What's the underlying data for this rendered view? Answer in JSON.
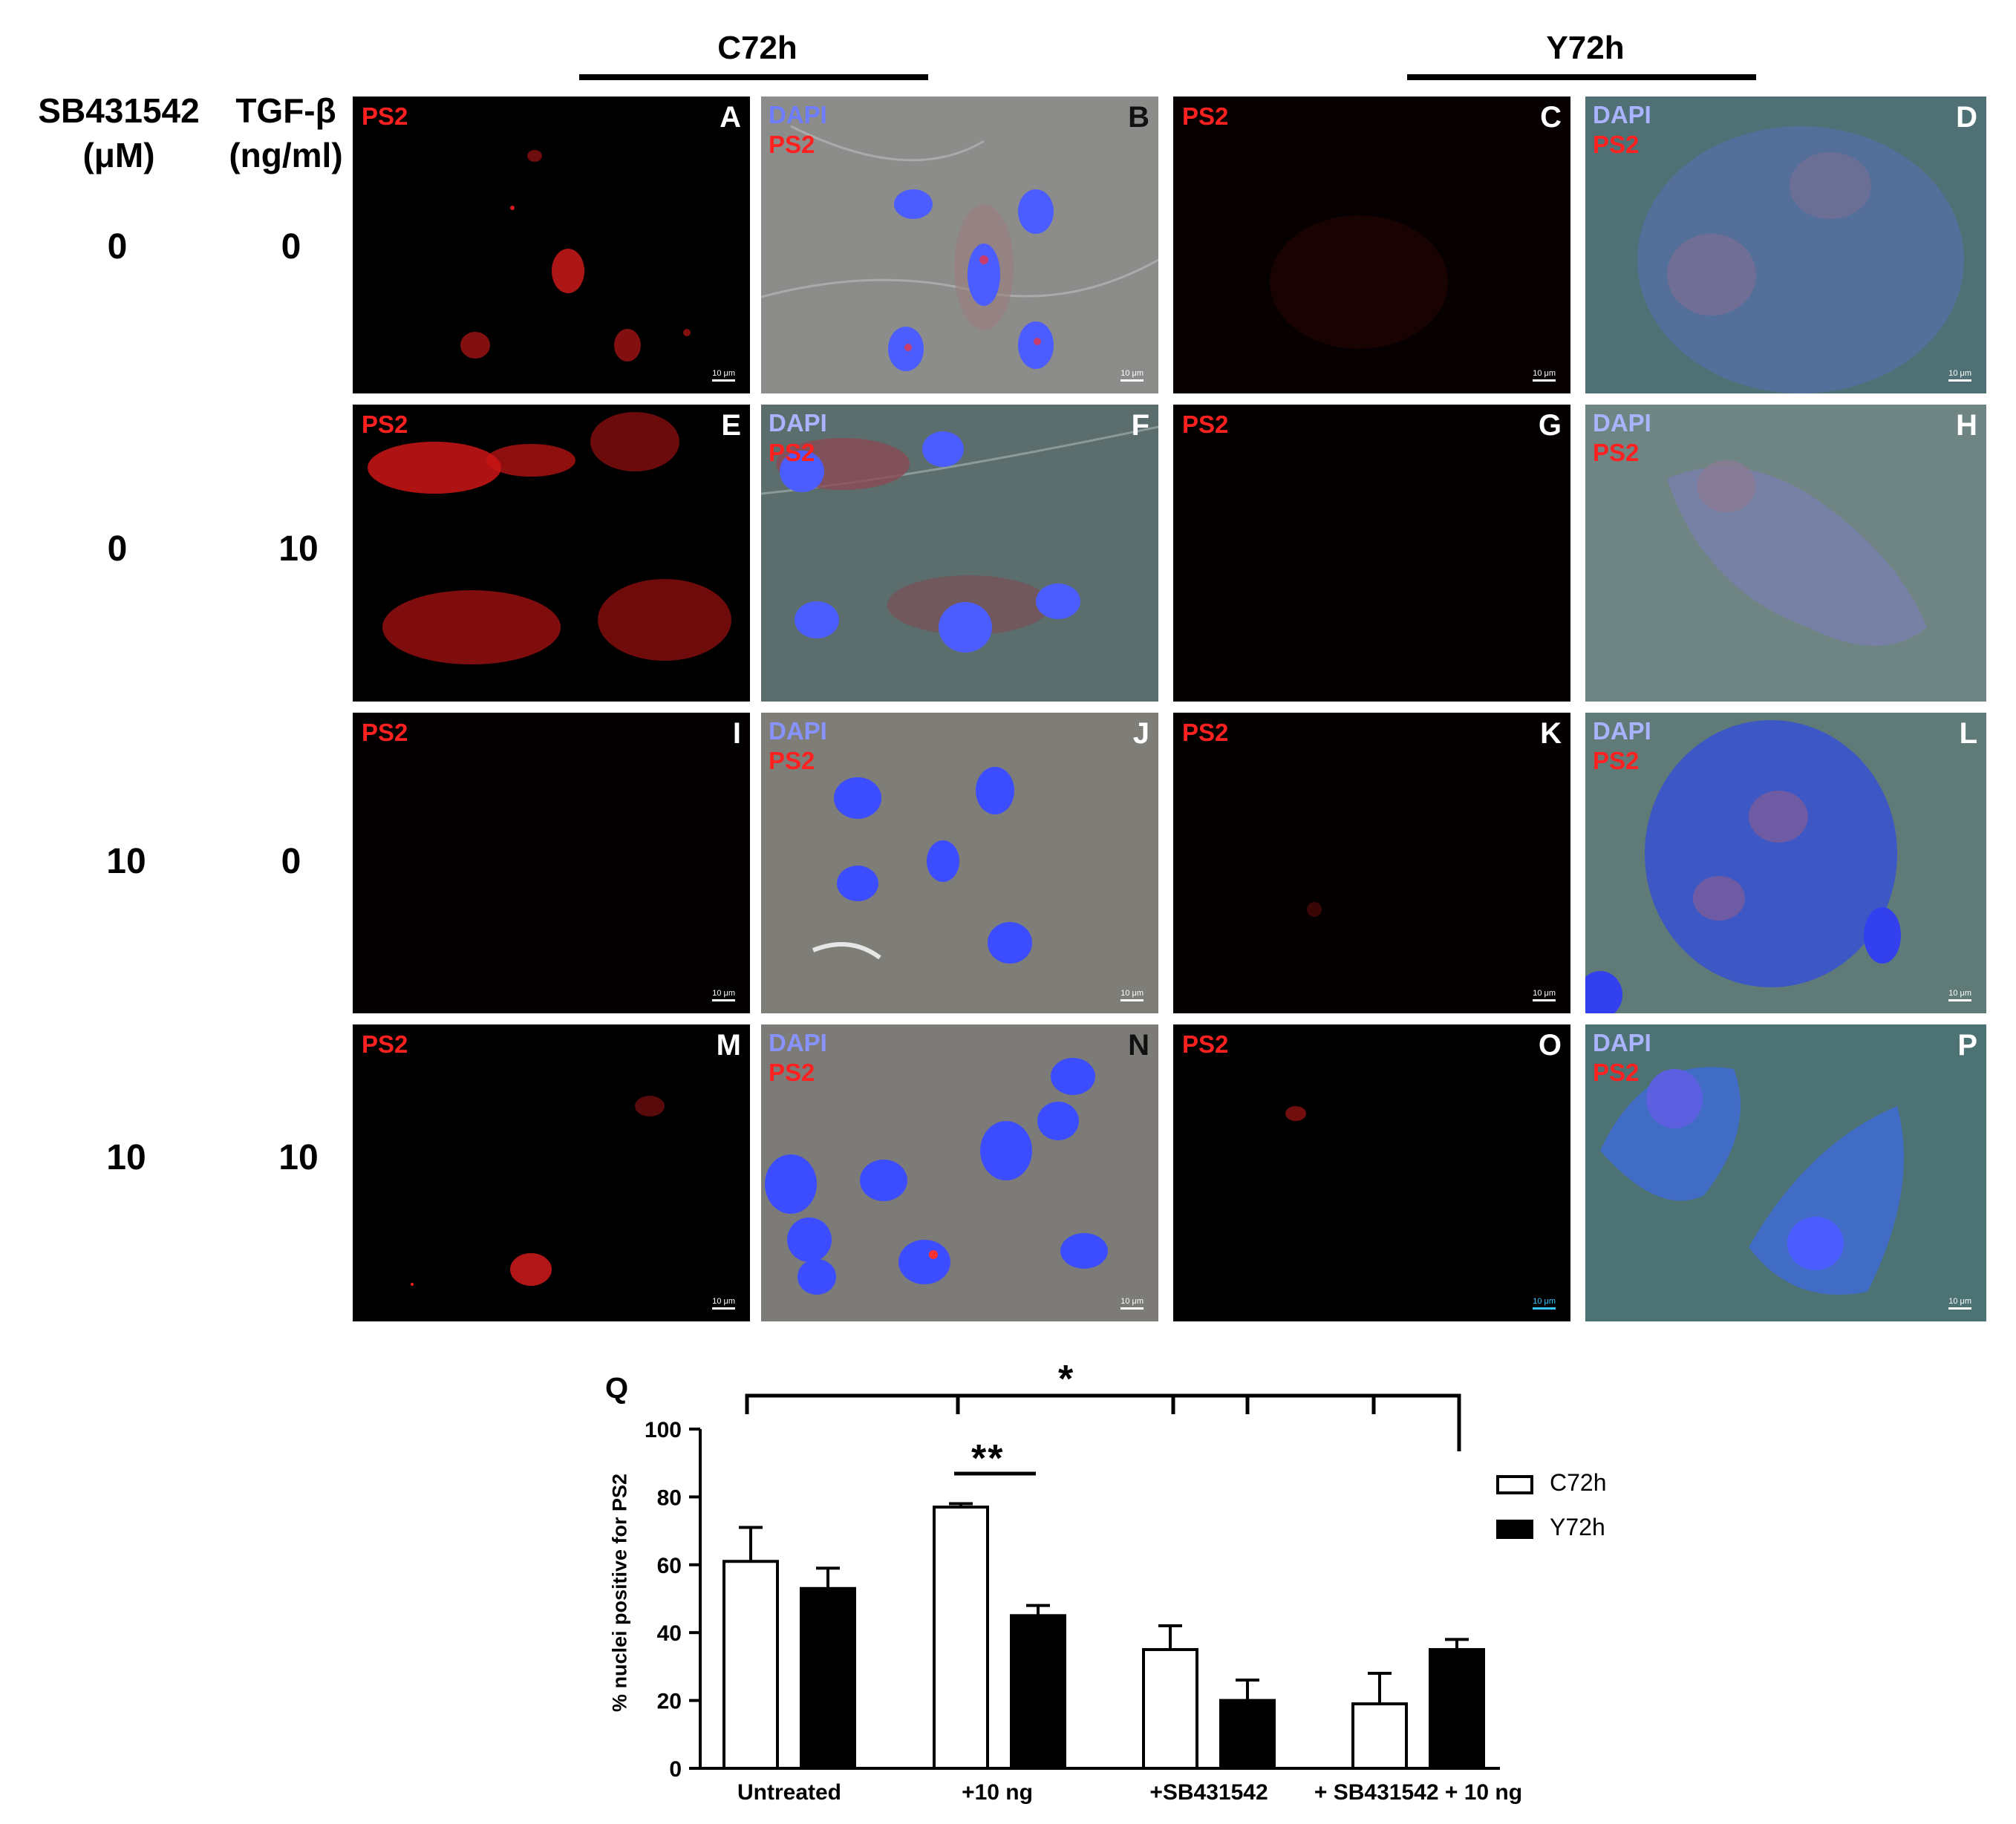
{
  "headers": {
    "col_group_left": "C72h",
    "col_group_right": "Y72h",
    "treatment_1_line1": "SB431542",
    "treatment_1_line2": "(μM)",
    "treatment_2_line1": "TGF-β",
    "treatment_2_line2": "(ng/ml)"
  },
  "rows": [
    {
      "sb": "0",
      "tgf": "0"
    },
    {
      "sb": "0",
      "tgf": "10"
    },
    {
      "sb": "10",
      "tgf": "0"
    },
    {
      "sb": "10",
      "tgf": "10"
    }
  ],
  "panel_letters": [
    "A",
    "B",
    "C",
    "D",
    "E",
    "F",
    "G",
    "H",
    "I",
    "J",
    "K",
    "L",
    "M",
    "N",
    "O",
    "P"
  ],
  "stain_labels": {
    "red": "PS2",
    "blue": "DAPI"
  },
  "scale_bar": "10 μm",
  "colors": {
    "ps2": "#ff1e1e",
    "dapi": "#5b6cff",
    "panel_letter_dark": "#111111",
    "panel_letter_light": "#ffffff"
  },
  "chart_data": {
    "panel_label": "Q",
    "type": "bar",
    "categories": [
      "Untreated",
      "+10 ng",
      "+SB431542",
      "+ SB431542 + 10 ng"
    ],
    "series": [
      {
        "name": "C72h",
        "values": [
          61,
          77,
          35,
          19
        ],
        "errors": [
          10,
          1,
          7,
          9
        ],
        "fill": "#ffffff"
      },
      {
        "name": "Y72h",
        "values": [
          53,
          45,
          20,
          35
        ],
        "errors": [
          6,
          3,
          6,
          3
        ],
        "fill": "#000000"
      }
    ],
    "ylabel": "% nuclei positive for PS2",
    "ylim": [
      0,
      100
    ],
    "yticks": [
      0,
      20,
      40,
      60,
      80,
      100
    ],
    "legend_position": "top-right",
    "significance": [
      {
        "label": "*"
      },
      {
        "label": "**"
      }
    ]
  }
}
